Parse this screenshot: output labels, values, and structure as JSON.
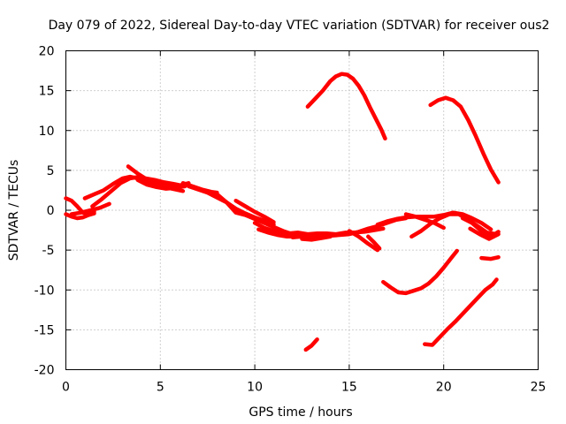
{
  "chart_data": {
    "type": "line",
    "title": "Day 079 of 2022, Sidereal Day-to-day VTEC variation (SDTVAR) for receiver ous2",
    "xlabel": "GPS time / hours",
    "ylabel": "SDTVAR / TECUs",
    "xlim": [
      0,
      25
    ],
    "ylim": [
      -20,
      20
    ],
    "xticks": [
      0,
      5,
      10,
      15,
      20,
      25
    ],
    "yticks": [
      -20,
      -15,
      -10,
      -5,
      0,
      5,
      10,
      15,
      20
    ],
    "grid": true,
    "series_color": "#ff0000",
    "series": [
      {
        "name": "s1",
        "x": [
          0.0,
          0.3,
          0.6,
          0.9,
          1.2,
          1.5
        ],
        "y": [
          1.5,
          1.2,
          0.5,
          -0.3,
          -0.5,
          -0.2
        ]
      },
      {
        "name": "s2",
        "x": [
          0.0,
          0.3,
          0.6,
          0.9,
          1.2,
          1.5
        ],
        "y": [
          -0.5,
          -0.8,
          -1.0,
          -0.9,
          -0.6,
          -0.4
        ]
      },
      {
        "name": "s3",
        "x": [
          0.3,
          0.8,
          1.3,
          1.8,
          2.3
        ],
        "y": [
          -0.5,
          -0.3,
          0.0,
          0.3,
          0.8
        ]
      },
      {
        "name": "s4",
        "x": [
          1.0,
          1.5,
          2.0,
          2.5,
          3.0,
          3.4,
          3.8,
          4.3,
          5.0,
          5.5,
          6.0,
          6.5
        ],
        "y": [
          1.5,
          2.0,
          2.5,
          3.3,
          4.0,
          4.2,
          4.0,
          3.6,
          3.3,
          3.0,
          3.1,
          3.4
        ]
      },
      {
        "name": "s5",
        "x": [
          1.4,
          1.9,
          2.4,
          2.9,
          3.4,
          3.9,
          4.4,
          5.0,
          5.6,
          6.2
        ],
        "y": [
          0.5,
          1.4,
          2.4,
          3.4,
          4.0,
          4.2,
          3.6,
          3.1,
          2.7,
          2.4
        ]
      },
      {
        "name": "s6",
        "x": [
          3.3,
          3.8,
          4.2,
          4.7,
          5.2,
          5.7,
          6.1
        ],
        "y": [
          5.5,
          4.6,
          4.0,
          3.8,
          3.5,
          3.3,
          3.1
        ]
      },
      {
        "name": "s7",
        "x": [
          3.8,
          4.3,
          4.8,
          5.3,
          5.8,
          6.3
        ],
        "y": [
          3.8,
          3.2,
          2.9,
          2.7,
          2.8,
          3.0
        ]
      },
      {
        "name": "s8",
        "x": [
          6.2,
          6.7,
          7.2,
          7.7,
          8.0
        ],
        "y": [
          3.4,
          3.0,
          2.6,
          2.3,
          2.2
        ]
      },
      {
        "name": "s9",
        "x": [
          6.5,
          7.0,
          7.5,
          8.0,
          8.5,
          9.0,
          9.5,
          10.0,
          10.5,
          11.0
        ],
        "y": [
          3.0,
          2.6,
          2.2,
          1.6,
          1.0,
          0.2,
          -0.4,
          -0.9,
          -1.3,
          -1.8
        ]
      },
      {
        "name": "s10",
        "x": [
          8.0,
          8.5,
          9.0,
          9.5,
          10.0,
          10.5,
          11.0,
          11.5,
          12.0
        ],
        "y": [
          2.0,
          1.0,
          -0.3,
          -0.6,
          -1.1,
          -1.6,
          -2.1,
          -2.6,
          -3.0
        ]
      },
      {
        "name": "s11",
        "x": [
          9.0,
          9.5,
          10.0,
          10.5,
          11.0
        ],
        "y": [
          1.2,
          0.5,
          -0.2,
          -0.8,
          -1.5
        ]
      },
      {
        "name": "s12",
        "x": [
          10.0,
          10.5,
          11.0,
          11.5,
          12.0,
          12.5,
          13.0
        ],
        "y": [
          -1.6,
          -2.2,
          -2.6,
          -2.8,
          -3.0,
          -3.0,
          -3.1
        ]
      },
      {
        "name": "s13",
        "x": [
          10.2,
          10.7,
          11.2,
          11.7,
          12.2,
          12.7,
          13.2
        ],
        "y": [
          -2.4,
          -2.8,
          -3.1,
          -3.3,
          -3.3,
          -3.2,
          -3.1
        ]
      },
      {
        "name": "s14",
        "x": [
          11.8,
          12.3,
          12.8,
          13.3,
          13.8,
          14.3,
          14.8,
          15.3,
          15.8,
          16.3,
          16.8
        ],
        "y": [
          -2.9,
          -2.8,
          -3.0,
          -2.9,
          -2.9,
          -3.0,
          -2.8,
          -2.8,
          -2.7,
          -2.5,
          -2.3
        ]
      },
      {
        "name": "s15",
        "x": [
          12.0,
          12.5,
          13.0,
          13.5,
          14.0,
          14.5,
          15.0,
          15.5,
          16.0,
          16.5,
          17.0,
          17.5,
          18.0
        ],
        "y": [
          -3.4,
          -3.3,
          -3.4,
          -3.3,
          -3.2,
          -3.1,
          -3.0,
          -2.7,
          -2.3,
          -2.0,
          -1.6,
          -1.2,
          -1.0
        ]
      },
      {
        "name": "s16",
        "x": [
          12.5,
          13.0,
          13.5,
          14.0
        ],
        "y": [
          -3.6,
          -3.7,
          -3.5,
          -3.3
        ]
      },
      {
        "name": "s17",
        "x": [
          15.0,
          15.5,
          16.0,
          16.5
        ],
        "y": [
          -2.6,
          -3.3,
          -4.2,
          -5.0
        ]
      },
      {
        "name": "s18",
        "x": [
          16.0,
          16.3,
          16.6
        ],
        "y": [
          -3.3,
          -4.0,
          -4.8
        ]
      },
      {
        "name": "s19",
        "x": [
          16.5,
          17.0,
          17.5,
          18.0,
          18.5,
          19.0,
          19.5,
          20.0,
          20.5,
          21.0,
          21.5,
          22.0,
          22.5
        ],
        "y": [
          -1.8,
          -1.4,
          -1.1,
          -0.9,
          -0.8,
          -0.8,
          -0.8,
          -0.6,
          -0.3,
          -0.5,
          -1.0,
          -1.6,
          -2.4
        ]
      },
      {
        "name": "s20",
        "x": [
          18.0,
          18.5,
          19.0,
          19.5,
          20.0
        ],
        "y": [
          -0.5,
          -0.8,
          -1.2,
          -1.6,
          -2.2
        ]
      },
      {
        "name": "s21",
        "x": [
          18.3,
          18.8,
          19.3,
          19.8,
          20.3,
          20.8,
          21.3,
          21.8,
          22.3,
          22.8
        ],
        "y": [
          -3.3,
          -2.6,
          -1.7,
          -1.0,
          -0.5,
          -0.5,
          -1.2,
          -2.0,
          -2.8,
          -3.0
        ]
      },
      {
        "name": "s22",
        "x": [
          21.0,
          21.5,
          22.0,
          22.5,
          22.9
        ],
        "y": [
          -1.0,
          -1.6,
          -2.6,
          -3.3,
          -2.7
        ]
      },
      {
        "name": "s23",
        "x": [
          21.4,
          21.9,
          22.4,
          22.9
        ],
        "y": [
          -2.3,
          -3.0,
          -3.6,
          -3.0
        ]
      },
      {
        "name": "s24",
        "x": [
          22.0,
          22.5,
          22.9
        ],
        "y": [
          -6.0,
          -6.1,
          -5.9
        ]
      },
      {
        "name": "s25",
        "x": [
          12.8,
          13.2,
          13.6,
          14.0,
          14.3,
          14.6,
          14.9,
          15.2,
          15.5,
          15.8,
          16.1,
          16.4,
          16.7,
          16.9
        ],
        "y": [
          13.0,
          14.0,
          15.0,
          16.2,
          16.8,
          17.1,
          17.0,
          16.5,
          15.6,
          14.4,
          12.9,
          11.5,
          10.1,
          9.0
        ]
      },
      {
        "name": "s26",
        "x": [
          19.3,
          19.7,
          20.1,
          20.5,
          20.9,
          21.3,
          21.7,
          22.1,
          22.5,
          22.9
        ],
        "y": [
          13.2,
          13.8,
          14.1,
          13.8,
          13.0,
          11.3,
          9.3,
          7.1,
          5.1,
          3.5
        ]
      },
      {
        "name": "s27",
        "x": [
          16.8,
          17.2,
          17.6,
          18.0,
          18.4,
          18.8,
          19.2,
          19.6,
          20.0,
          20.4,
          20.7
        ],
        "y": [
          -9.0,
          -9.7,
          -10.3,
          -10.4,
          -10.1,
          -9.8,
          -9.2,
          -8.3,
          -7.2,
          -6.0,
          -5.1
        ]
      },
      {
        "name": "s28",
        "x": [
          19.0,
          19.4,
          19.8,
          20.2,
          20.6,
          21.0,
          21.4,
          21.8,
          22.2,
          22.6,
          22.8
        ],
        "y": [
          -16.8,
          -16.9,
          -15.9,
          -14.9,
          -14.0,
          -13.0,
          -12.0,
          -11.0,
          -10.0,
          -9.3,
          -8.7
        ]
      },
      {
        "name": "s29",
        "x": [
          12.7,
          13.0,
          13.3
        ],
        "y": [
          -17.5,
          -17.0,
          -16.2
        ]
      }
    ]
  }
}
